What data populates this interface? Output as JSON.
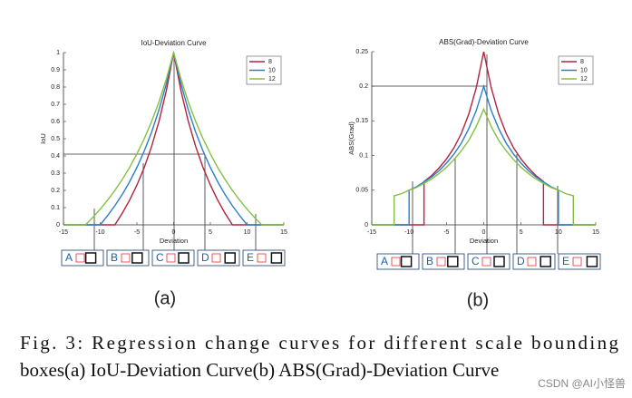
{
  "chart_data": [
    {
      "type": "line",
      "title": "IoU-Deviation Curve",
      "xlabel": "Deviation",
      "ylabel": "IoU",
      "xlim": [
        -15,
        15
      ],
      "xticks": [
        -15,
        -10,
        -5,
        0,
        5,
        10,
        15
      ],
      "ylim": [
        0,
        1
      ],
      "yticks": [
        0,
        0.1,
        0.2,
        0.3,
        0.4,
        0.5,
        0.6,
        0.7,
        0.8,
        0.9,
        1
      ],
      "legend": "upper right",
      "series": [
        {
          "name": "8",
          "color": "#b0233f",
          "x": [
            -15,
            -8,
            -7,
            -6,
            -5,
            -4,
            -3,
            -2,
            -1,
            0,
            1,
            2,
            3,
            4,
            5,
            6,
            7,
            8,
            15
          ],
          "values": [
            0,
            0,
            0.067,
            0.143,
            0.231,
            0.333,
            0.455,
            0.6,
            0.778,
            1,
            0.778,
            0.6,
            0.455,
            0.333,
            0.231,
            0.143,
            0.067,
            0,
            0
          ]
        },
        {
          "name": "10",
          "color": "#2a7fc9",
          "x": [
            -15,
            -10,
            -9,
            -8,
            -7,
            -6,
            -5,
            -4,
            -3,
            -2,
            -1,
            0,
            1,
            2,
            3,
            4,
            5,
            6,
            7,
            8,
            9,
            10,
            15
          ],
          "values": [
            0,
            0,
            0.053,
            0.111,
            0.176,
            0.25,
            0.333,
            0.429,
            0.538,
            0.667,
            0.818,
            1,
            0.818,
            0.667,
            0.538,
            0.429,
            0.333,
            0.25,
            0.176,
            0.111,
            0.053,
            0,
            0
          ]
        },
        {
          "name": "12",
          "color": "#86bf40",
          "x": [
            -15,
            -12,
            -11,
            -10,
            -9,
            -8,
            -7,
            -6,
            -5,
            -4,
            -3,
            -2,
            -1,
            0,
            1,
            2,
            3,
            4,
            5,
            6,
            7,
            8,
            9,
            10,
            11,
            12,
            15
          ],
          "values": [
            0,
            0,
            0.043,
            0.091,
            0.143,
            0.2,
            0.263,
            0.333,
            0.412,
            0.5,
            0.6,
            0.714,
            0.846,
            1,
            0.846,
            0.714,
            0.6,
            0.5,
            0.412,
            0.333,
            0.263,
            0.2,
            0.143,
            0.091,
            0.043,
            0,
            0
          ]
        }
      ],
      "panels": [
        "A",
        "B",
        "C",
        "D",
        "E"
      ],
      "label": "(a)"
    },
    {
      "type": "line",
      "title": "ABS(Grad)-Deviation Curve",
      "xlabel": "Deviation",
      "ylabel": "ABS(Grad)",
      "xlim": [
        -15,
        15
      ],
      "xticks": [
        -15,
        -10,
        -5,
        0,
        5,
        10,
        15
      ],
      "ylim": [
        0,
        0.25
      ],
      "yticks": [
        0,
        0.05,
        0.1,
        0.15,
        0.2,
        0.25
      ],
      "legend": "upper right",
      "series": [
        {
          "name": "8",
          "color": "#b0233f",
          "x": [
            -15,
            -8,
            -8,
            -7,
            -6,
            -5,
            -4,
            -3,
            -2,
            -1,
            0,
            1,
            2,
            3,
            4,
            5,
            6,
            7,
            8,
            8,
            15
          ],
          "values": [
            0,
            0,
            0.0625,
            0.071,
            0.082,
            0.095,
            0.111,
            0.132,
            0.16,
            0.198,
            0.25,
            0.198,
            0.16,
            0.132,
            0.111,
            0.095,
            0.082,
            0.071,
            0.0625,
            0,
            0
          ]
        },
        {
          "name": "10",
          "color": "#2a7fc9",
          "x": [
            -15,
            -10,
            -10,
            -9,
            -8,
            -7,
            -6,
            -5,
            -4,
            -3,
            -2,
            -1,
            0,
            1,
            2,
            3,
            4,
            5,
            6,
            7,
            8,
            9,
            10,
            10,
            15
          ],
          "values": [
            0,
            0,
            0.05,
            0.055,
            0.062,
            0.069,
            0.078,
            0.089,
            0.102,
            0.118,
            0.139,
            0.165,
            0.2,
            0.165,
            0.139,
            0.118,
            0.102,
            0.089,
            0.078,
            0.069,
            0.062,
            0.055,
            0.05,
            0,
            0
          ]
        },
        {
          "name": "12",
          "color": "#86bf40",
          "x": [
            -15,
            -12,
            -12,
            -11,
            -10,
            -9,
            -8,
            -7,
            -6,
            -5,
            -4,
            -3,
            -2,
            -1,
            0,
            1,
            2,
            3,
            4,
            5,
            6,
            7,
            8,
            9,
            10,
            11,
            12,
            12,
            15
          ],
          "values": [
            0,
            0,
            0.042,
            0.045,
            0.05,
            0.054,
            0.06,
            0.066,
            0.074,
            0.083,
            0.094,
            0.107,
            0.122,
            0.142,
            0.167,
            0.142,
            0.122,
            0.107,
            0.094,
            0.083,
            0.074,
            0.066,
            0.06,
            0.054,
            0.05,
            0.045,
            0.042,
            0,
            0
          ]
        }
      ],
      "panels": [
        "A",
        "B",
        "C",
        "D",
        "E"
      ],
      "label": "(b)"
    }
  ],
  "caption": [
    "Fig. 3: Regression change curves for different scale bounding",
    "boxes(a) IoU-Deviation Curve(b) ABS(Grad)-Deviation Curve"
  ],
  "watermark": "CSDN @AI小怪兽"
}
